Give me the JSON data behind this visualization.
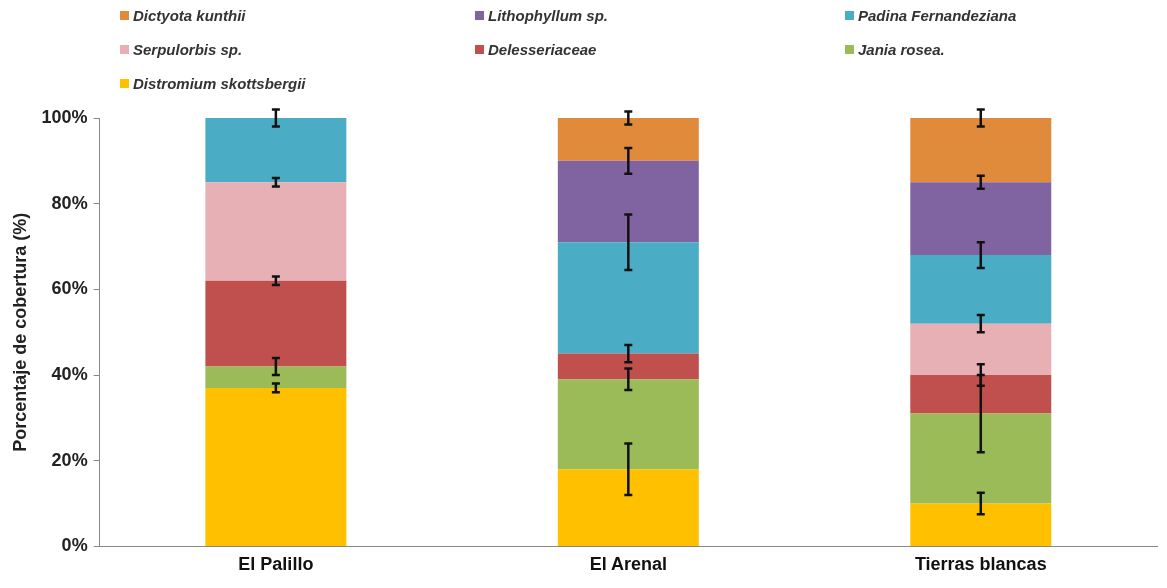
{
  "chart_data": {
    "type": "bar",
    "stacked": true,
    "ylabel": "Porcentaje de cobertura (%)",
    "categories": [
      "El Palillo",
      "El Arenal",
      "Tierras blancas"
    ],
    "ylim": [
      0,
      100
    ],
    "yticks": [
      {
        "value": 0,
        "label": "0%"
      },
      {
        "value": 20,
        "label": "20%"
      },
      {
        "value": 40,
        "label": "40%"
      },
      {
        "value": 60,
        "label": "60%"
      },
      {
        "value": 80,
        "label": "80%"
      },
      {
        "value": 100,
        "label": "100%"
      }
    ],
    "grid": false,
    "legend": "top",
    "series": [
      {
        "name": "Distromium skottsbergii",
        "color": "#ffc000",
        "values": [
          37,
          18,
          10
        ],
        "errors": [
          1,
          6,
          2.5
        ]
      },
      {
        "name": "Jania rosea.",
        "color": "#9bbb59",
        "values": [
          5,
          21,
          21
        ],
        "errors": [
          2,
          2.5,
          9
        ]
      },
      {
        "name": "Delesseriaceae",
        "color": "#c0504d",
        "values": [
          20,
          6,
          9
        ],
        "errors": [
          1,
          2,
          2.5
        ]
      },
      {
        "name": "Serpulorbis sp.",
        "color": "#e6b0b4",
        "values": [
          23,
          0,
          12
        ],
        "errors": [
          1,
          null,
          2
        ]
      },
      {
        "name": "Padina Fernandeziana",
        "color": "#4bacc6",
        "values": [
          15,
          26,
          16
        ],
        "errors": [
          2,
          6.5,
          3
        ]
      },
      {
        "name": "Lithophyllum sp.",
        "color": "#8064a2",
        "values": [
          0,
          19,
          17
        ],
        "errors": [
          null,
          3,
          1.5
        ]
      },
      {
        "name": "Dictyota kunthii",
        "color": "#e08a3c",
        "values": [
          0,
          10,
          15
        ],
        "errors": [
          null,
          1.5,
          2
        ]
      }
    ]
  }
}
